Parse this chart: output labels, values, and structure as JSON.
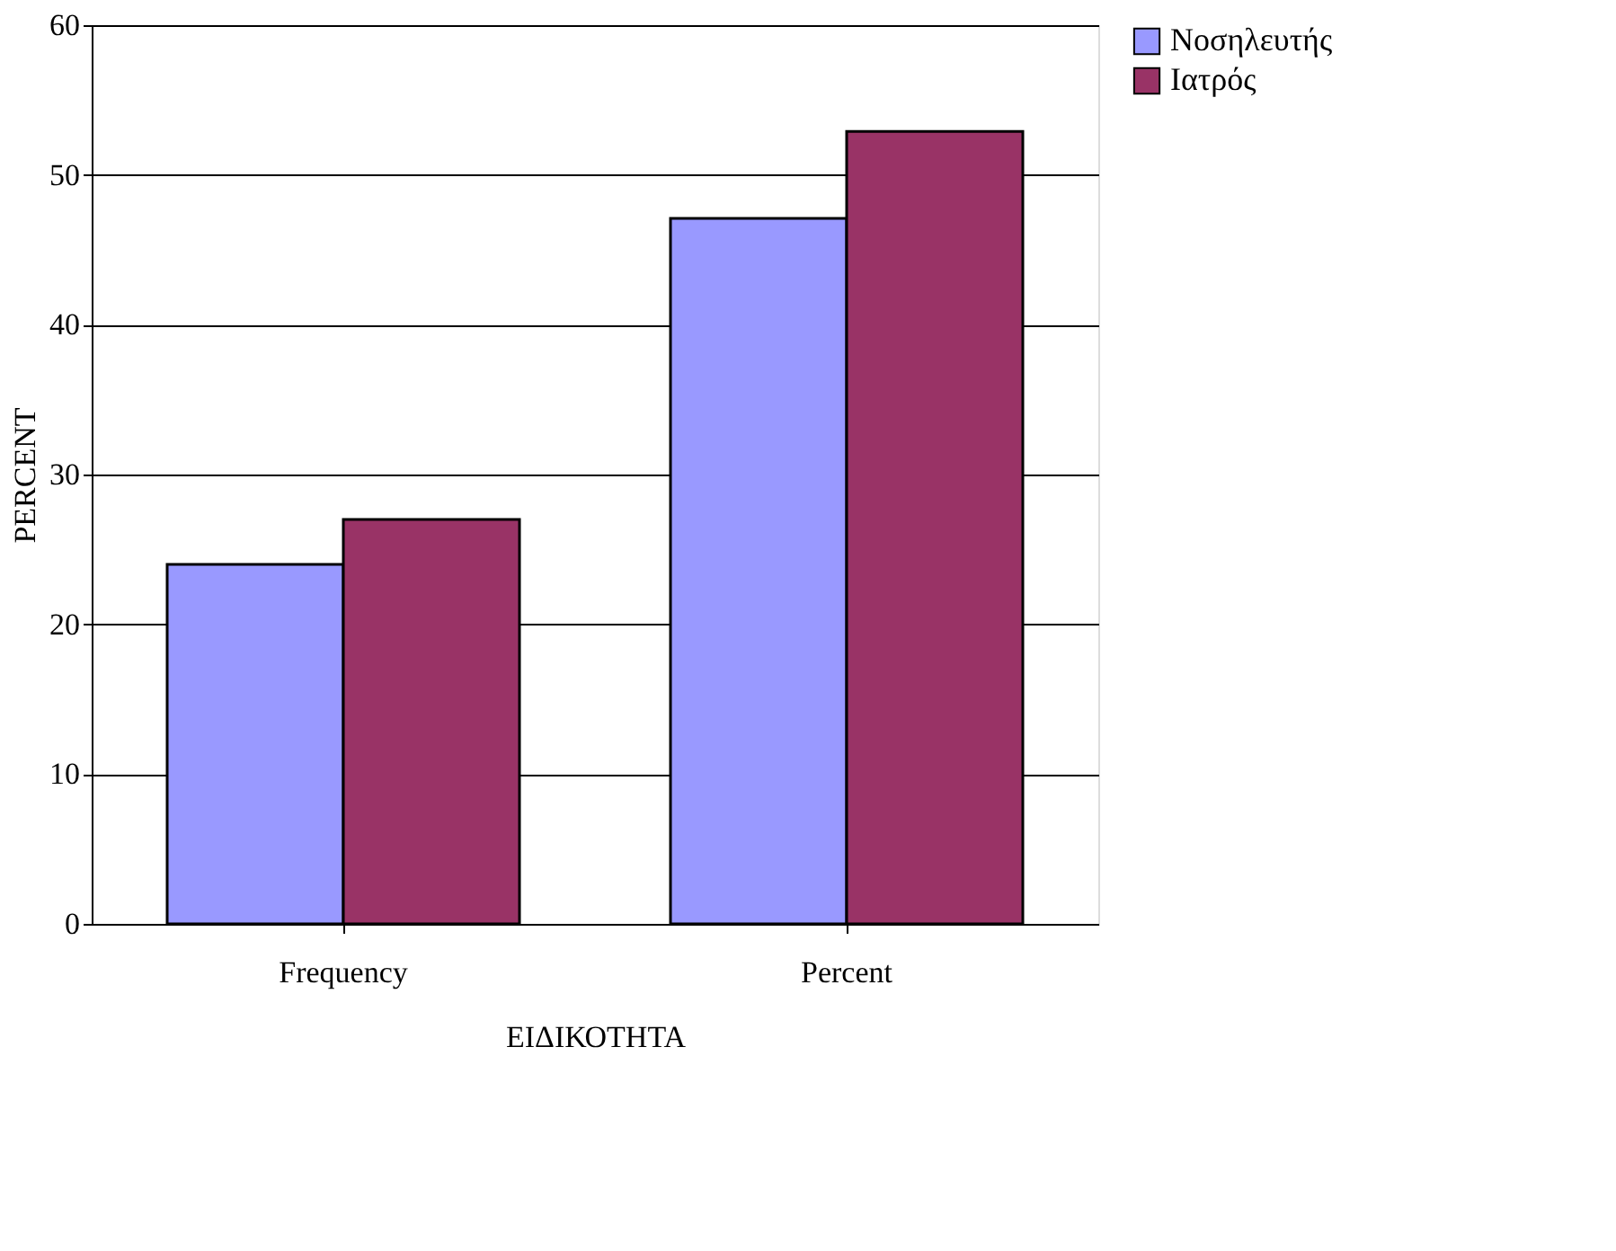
{
  "chart_data": {
    "type": "bar",
    "xlabel": "ΕΙΔΙΚΟΤΗΤΑ",
    "ylabel": "PERCENT",
    "categories": [
      "Frequency",
      "Percent"
    ],
    "series": [
      {
        "name": "Νοσηλευτής",
        "color": "#9999ff",
        "values": [
          24,
          47.1
        ]
      },
      {
        "name": "Ιατρός",
        "color": "#993366",
        "values": [
          27,
          52.9
        ]
      }
    ],
    "ylim": [
      0,
      60
    ],
    "yticks": [
      0,
      10,
      20,
      30,
      40,
      50,
      60
    ],
    "grid": "y",
    "legend": "right"
  }
}
